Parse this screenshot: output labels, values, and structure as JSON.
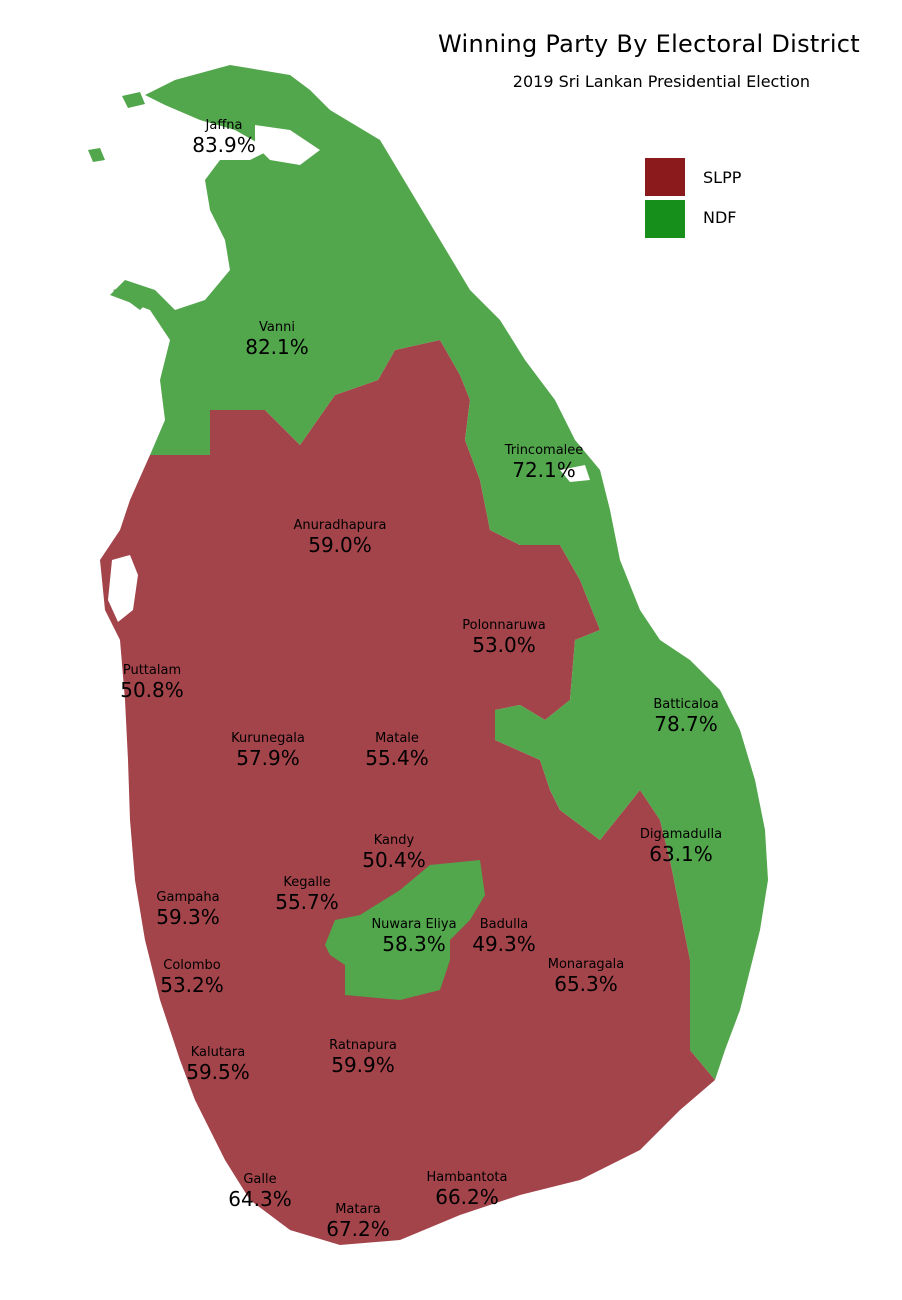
{
  "title": "Winning Party By Electoral District",
  "subtitle": "2019 Sri Lankan Presidential Election",
  "legend": [
    {
      "label": "SLPP",
      "color": "#8b1a1d"
    },
    {
      "label": "NDF",
      "color": "#16901b"
    }
  ],
  "map_colors": {
    "slpp_fill": "#a3434a",
    "ndf_fill": "#52a64c"
  },
  "districts": [
    {
      "name": "Jaffna",
      "pct": "83.9%",
      "winner": "NDF"
    },
    {
      "name": "Vanni",
      "pct": "82.1%",
      "winner": "NDF"
    },
    {
      "name": "Trincomalee",
      "pct": "72.1%",
      "winner": "NDF"
    },
    {
      "name": "Anuradhapura",
      "pct": "59.0%",
      "winner": "SLPP"
    },
    {
      "name": "Polonnaruwa",
      "pct": "53.0%",
      "winner": "SLPP"
    },
    {
      "name": "Puttalam",
      "pct": "50.8%",
      "winner": "SLPP"
    },
    {
      "name": "Batticaloa",
      "pct": "78.7%",
      "winner": "NDF"
    },
    {
      "name": "Kurunegala",
      "pct": "57.9%",
      "winner": "SLPP"
    },
    {
      "name": "Matale",
      "pct": "55.4%",
      "winner": "SLPP"
    },
    {
      "name": "Digamadulla",
      "pct": "63.1%",
      "winner": "NDF"
    },
    {
      "name": "Kandy",
      "pct": "50.4%",
      "winner": "SLPP"
    },
    {
      "name": "Kegalle",
      "pct": "55.7%",
      "winner": "SLPP"
    },
    {
      "name": "Gampaha",
      "pct": "59.3%",
      "winner": "SLPP"
    },
    {
      "name": "Nuwara Eliya",
      "pct": "58.3%",
      "winner": "NDF"
    },
    {
      "name": "Badulla",
      "pct": "49.3%",
      "winner": "SLPP"
    },
    {
      "name": "Colombo",
      "pct": "53.2%",
      "winner": "SLPP"
    },
    {
      "name": "Monaragala",
      "pct": "65.3%",
      "winner": "SLPP"
    },
    {
      "name": "Kalutara",
      "pct": "59.5%",
      "winner": "SLPP"
    },
    {
      "name": "Ratnapura",
      "pct": "59.9%",
      "winner": "SLPP"
    },
    {
      "name": "Galle",
      "pct": "64.3%",
      "winner": "SLPP"
    },
    {
      "name": "Hambantota",
      "pct": "66.2%",
      "winner": "SLPP"
    },
    {
      "name": "Matara",
      "pct": "67.2%",
      "winner": "SLPP"
    }
  ]
}
